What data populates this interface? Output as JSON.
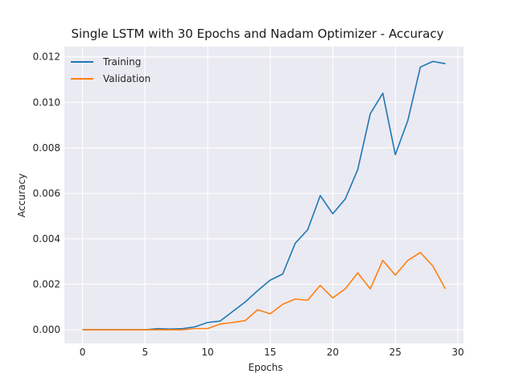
{
  "chart_data": {
    "type": "line",
    "title": "Single LSTM with 30 Epochs and Nadam Optimizer - Accuracy",
    "xlabel": "Epochs",
    "ylabel": "Accuracy",
    "xlim": [
      -1.45,
      30.45
    ],
    "ylim": [
      -0.0006,
      0.01245
    ],
    "xticks": [
      0,
      5,
      10,
      15,
      20,
      25,
      30
    ],
    "xtick_labels": [
      "0",
      "5",
      "10",
      "15",
      "20",
      "25",
      "30"
    ],
    "yticks": [
      0.0,
      0.002,
      0.004,
      0.006,
      0.008,
      0.01,
      0.012
    ],
    "ytick_labels": [
      "0.000",
      "0.002",
      "0.004",
      "0.006",
      "0.008",
      "0.010",
      "0.012"
    ],
    "grid": true,
    "legend_position": "upper-left",
    "x": [
      0,
      1,
      2,
      3,
      4,
      5,
      6,
      7,
      8,
      9,
      10,
      11,
      12,
      13,
      14,
      15,
      16,
      17,
      18,
      19,
      20,
      21,
      22,
      23,
      24,
      25,
      26,
      27,
      28,
      29
    ],
    "series": [
      {
        "name": "Training",
        "color": "#1f77b4",
        "values": [
          0.0,
          0.0,
          0.0,
          0.0,
          0.0,
          0.0,
          5e-05,
          3e-05,
          5e-05,
          0.00013,
          0.00032,
          0.00038,
          0.0008,
          0.00122,
          0.00172,
          0.00218,
          0.00245,
          0.0038,
          0.0044,
          0.0059,
          0.0051,
          0.00575,
          0.00705,
          0.0095,
          0.0104,
          0.0077,
          0.0092,
          0.01155,
          0.0118,
          0.0117
        ]
      },
      {
        "name": "Validation",
        "color": "#ff7f0e",
        "values": [
          0.0,
          0.0,
          0.0,
          0.0,
          0.0,
          0.0,
          0.0,
          0.0,
          0.0,
          5e-05,
          5e-05,
          0.00025,
          0.00032,
          0.0004,
          0.00088,
          0.0007,
          0.00112,
          0.00135,
          0.0013,
          0.00195,
          0.0014,
          0.0018,
          0.0025,
          0.0018,
          0.00305,
          0.0024,
          0.00305,
          0.0034,
          0.0028,
          0.0018
        ]
      }
    ]
  }
}
